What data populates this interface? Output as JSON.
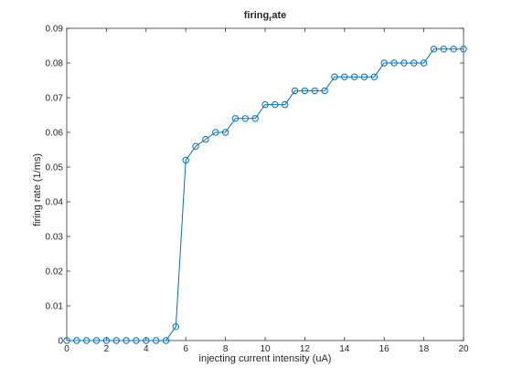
{
  "colors": {
    "series": "#0072BD",
    "axes": "#262626",
    "background": "#ffffff"
  },
  "chart_data": {
    "type": "line",
    "title": "firing",
    "title_subscript": "r",
    "title_suffix": "ate",
    "xlabel": "injecting current intensity (uA)",
    "ylabel": "firing rate  (1/ms)",
    "xlim": [
      0,
      20
    ],
    "ylim": [
      0,
      0.09
    ],
    "xticks": [
      0,
      2,
      4,
      6,
      8,
      10,
      12,
      14,
      16,
      18,
      20
    ],
    "yticks": [
      0,
      0.01,
      0.02,
      0.03,
      0.04,
      0.05,
      0.06,
      0.07,
      0.08,
      0.09
    ],
    "ytick_labels": [
      "0",
      "0.01",
      "0.02",
      "0.03",
      "0.04",
      "0.05",
      "0.06",
      "0.07",
      "0.08",
      "0.09"
    ],
    "grid": false,
    "marker": "circle",
    "series": [
      {
        "x": [
          0,
          0.5,
          1,
          1.5,
          2,
          2.5,
          3,
          3.5,
          4,
          4.5,
          5,
          5.5,
          6,
          6.5,
          7,
          7.5,
          8,
          8.5,
          9,
          9.5,
          10,
          10.5,
          11,
          11.5,
          12,
          12.5,
          13,
          13.5,
          14,
          14.5,
          15,
          15.5,
          16,
          16.5,
          17,
          17.5,
          18,
          18.5,
          19,
          19.5,
          20
        ],
        "values": [
          0,
          0,
          0,
          0,
          0,
          0,
          0,
          0,
          0,
          0,
          0,
          0.004,
          0.052,
          0.056,
          0.058,
          0.06,
          0.06,
          0.064,
          0.064,
          0.064,
          0.068,
          0.068,
          0.068,
          0.072,
          0.072,
          0.072,
          0.072,
          0.076,
          0.076,
          0.076,
          0.076,
          0.076,
          0.08,
          0.08,
          0.08,
          0.08,
          0.08,
          0.084,
          0.084,
          0.084,
          0.084
        ]
      }
    ]
  }
}
